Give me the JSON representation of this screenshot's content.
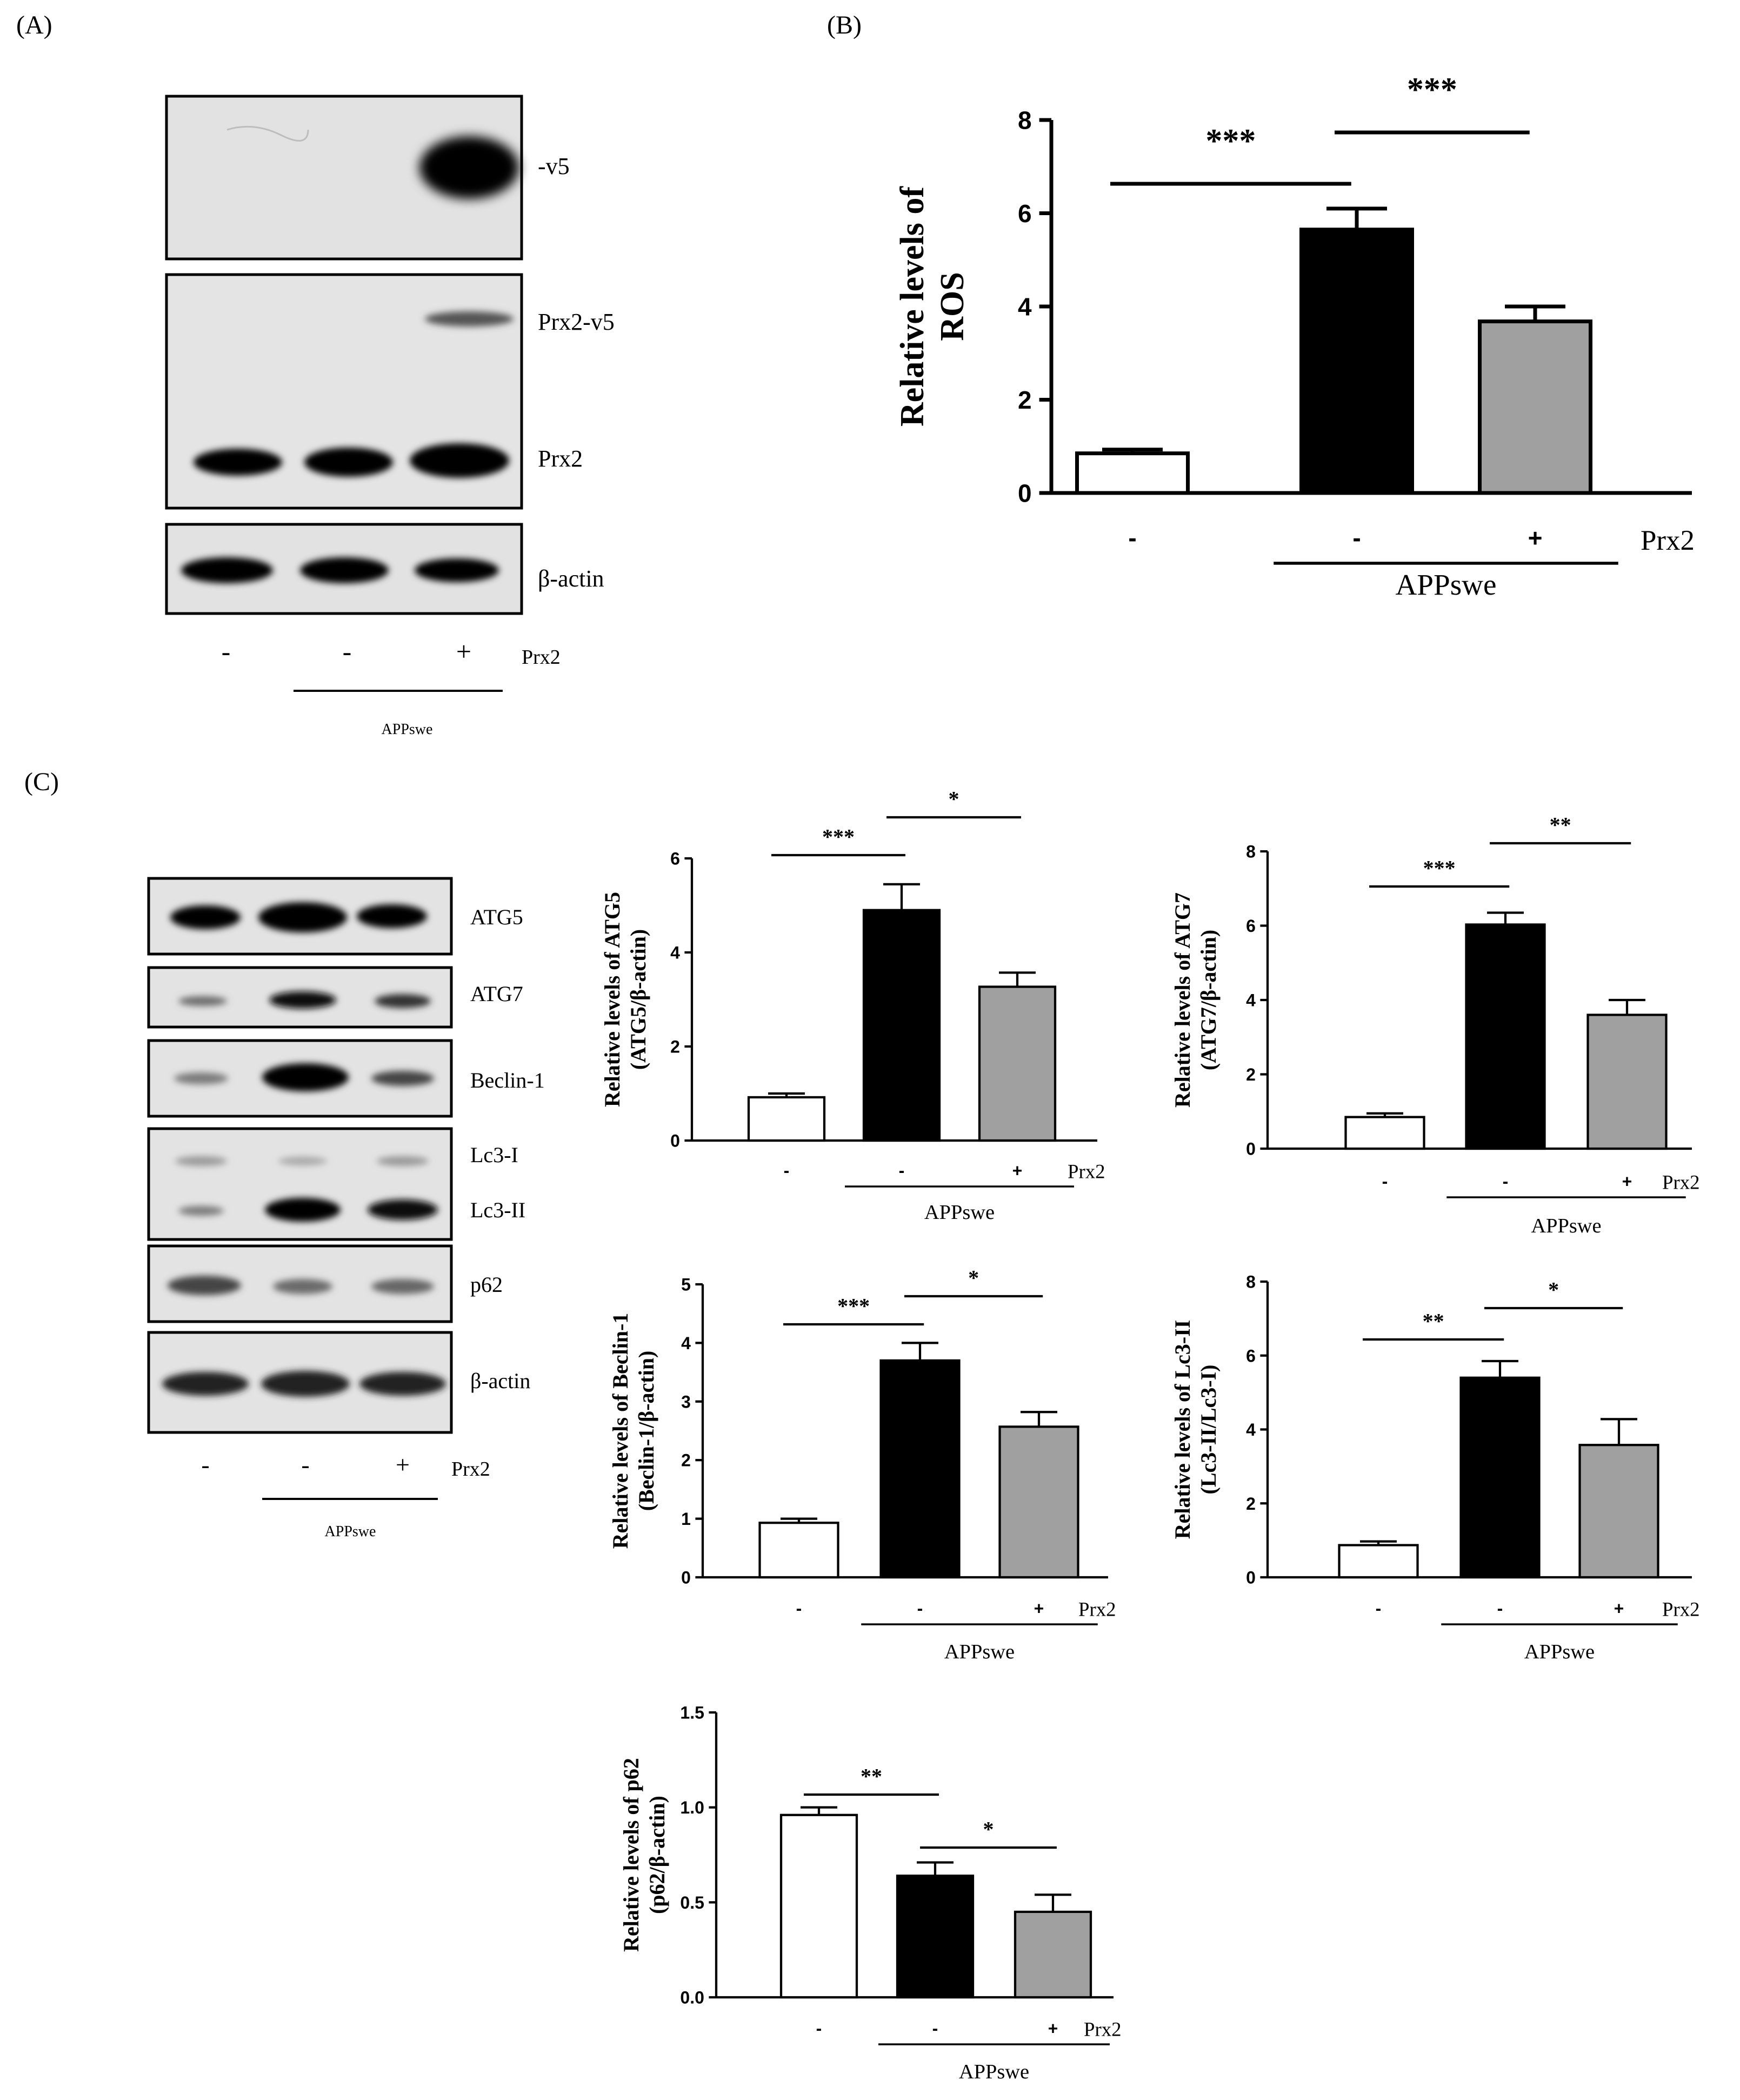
{
  "panels": {
    "A": {
      "letter": "(A)",
      "bands": [
        "-v5",
        "Prx2-v5",
        "Prx2",
        "β-actin"
      ],
      "treatment": {
        "signs": [
          "-",
          "-",
          "+"
        ],
        "label": "Prx2",
        "group": "APPswe"
      }
    },
    "B": {
      "letter": "(B)"
    },
    "C": {
      "letter": "(C)",
      "bands": [
        "ATG5",
        "ATG7",
        "Beclin-1",
        "Lc3-I",
        "Lc3-II",
        "p62",
        "β-actin"
      ],
      "treatment": {
        "signs": [
          "-",
          "-",
          "+"
        ],
        "label": "Prx2",
        "group": "APPswe"
      }
    }
  },
  "chart_data": [
    {
      "id": "ros",
      "type": "bar",
      "categories": [
        "-",
        "-",
        "+"
      ],
      "values": [
        0.85,
        5.65,
        3.68
      ],
      "errors": [
        0.08,
        0.45,
        0.32
      ],
      "colors": [
        "#ffffff",
        "#000000",
        "#a0a0a0"
      ],
      "ylabel_lines": [
        "Relative levels of",
        "ROS"
      ],
      "ylim": [
        0,
        8
      ],
      "yticks": [
        "0",
        "2",
        "4",
        "6",
        "8"
      ],
      "treatment_label": "Prx2",
      "group_label": "APPswe",
      "significance": [
        {
          "from": 0,
          "to": 1,
          "label": "***"
        },
        {
          "from": 1,
          "to": 2,
          "label": "***"
        }
      ]
    },
    {
      "id": "atg5",
      "type": "bar",
      "categories": [
        "-",
        "-",
        "+"
      ],
      "values": [
        0.92,
        4.9,
        3.27
      ],
      "errors": [
        0.08,
        0.55,
        0.3
      ],
      "colors": [
        "#ffffff",
        "#000000",
        "#a0a0a0"
      ],
      "ylabel_lines": [
        "Relative levels of ATG5",
        "(ATG5/β-actin)"
      ],
      "ylim": [
        0,
        6
      ],
      "yticks": [
        "0",
        "2",
        "4",
        "6"
      ],
      "treatment_label": "Prx2",
      "group_label": "APPswe",
      "significance": [
        {
          "from": 0,
          "to": 1,
          "label": "***"
        },
        {
          "from": 1,
          "to": 2,
          "label": "*"
        }
      ]
    },
    {
      "id": "atg7",
      "type": "bar",
      "categories": [
        "-",
        "-",
        "+"
      ],
      "values": [
        0.85,
        6.03,
        3.6
      ],
      "errors": [
        0.1,
        0.32,
        0.4
      ],
      "colors": [
        "#ffffff",
        "#000000",
        "#a0a0a0"
      ],
      "ylabel_lines": [
        "Relative levels of ATG7",
        "(ATG7/β-actin)"
      ],
      "ylim": [
        0,
        8
      ],
      "yticks": [
        "0",
        "2",
        "4",
        "6",
        "8"
      ],
      "treatment_label": "Prx2",
      "group_label": "APPswe",
      "significance": [
        {
          "from": 0,
          "to": 1,
          "label": "***"
        },
        {
          "from": 1,
          "to": 2,
          "label": "**"
        }
      ]
    },
    {
      "id": "beclin1",
      "type": "bar",
      "categories": [
        "-",
        "-",
        "+"
      ],
      "values": [
        0.93,
        3.7,
        2.57
      ],
      "errors": [
        0.07,
        0.3,
        0.25
      ],
      "colors": [
        "#ffffff",
        "#000000",
        "#a0a0a0"
      ],
      "ylabel_lines": [
        "Relative levels of Beclin-1",
        "(Beclin-1/β-actin)"
      ],
      "ylim": [
        0,
        5
      ],
      "yticks": [
        "0",
        "1",
        "2",
        "3",
        "4",
        "5"
      ],
      "treatment_label": "Prx2",
      "group_label": "APPswe",
      "significance": [
        {
          "from": 0,
          "to": 1,
          "label": "***"
        },
        {
          "from": 1,
          "to": 2,
          "label": "*"
        }
      ]
    },
    {
      "id": "lc3",
      "type": "bar",
      "categories": [
        "-",
        "-",
        "+"
      ],
      "values": [
        0.87,
        5.4,
        3.58
      ],
      "errors": [
        0.1,
        0.45,
        0.7
      ],
      "colors": [
        "#ffffff",
        "#000000",
        "#a0a0a0"
      ],
      "ylabel_lines": [
        "Relative levels of Lc3-II",
        "(Lc3-II/Lc3-I)"
      ],
      "ylim": [
        0,
        8
      ],
      "yticks": [
        "0",
        "2",
        "4",
        "6",
        "8"
      ],
      "treatment_label": "Prx2",
      "group_label": "APPswe",
      "significance": [
        {
          "from": 0,
          "to": 1,
          "label": "**"
        },
        {
          "from": 1,
          "to": 2,
          "label": "*"
        }
      ]
    },
    {
      "id": "p62",
      "type": "bar",
      "categories": [
        "-",
        "-",
        "+"
      ],
      "values": [
        0.96,
        0.64,
        0.45
      ],
      "errors": [
        0.04,
        0.07,
        0.09
      ],
      "colors": [
        "#ffffff",
        "#000000",
        "#a0a0a0"
      ],
      "ylabel_lines": [
        "Relative levels of p62",
        "(p62/β-actin)"
      ],
      "ylim": [
        0,
        1.5
      ],
      "yticks": [
        "0.0",
        "0.5",
        "1.0",
        "1.5"
      ],
      "treatment_label": "Prx2",
      "group_label": "APPswe",
      "significance": [
        {
          "from": 0,
          "to": 1,
          "label": "**"
        },
        {
          "from": 1,
          "to": 2,
          "label": "*"
        }
      ]
    }
  ]
}
